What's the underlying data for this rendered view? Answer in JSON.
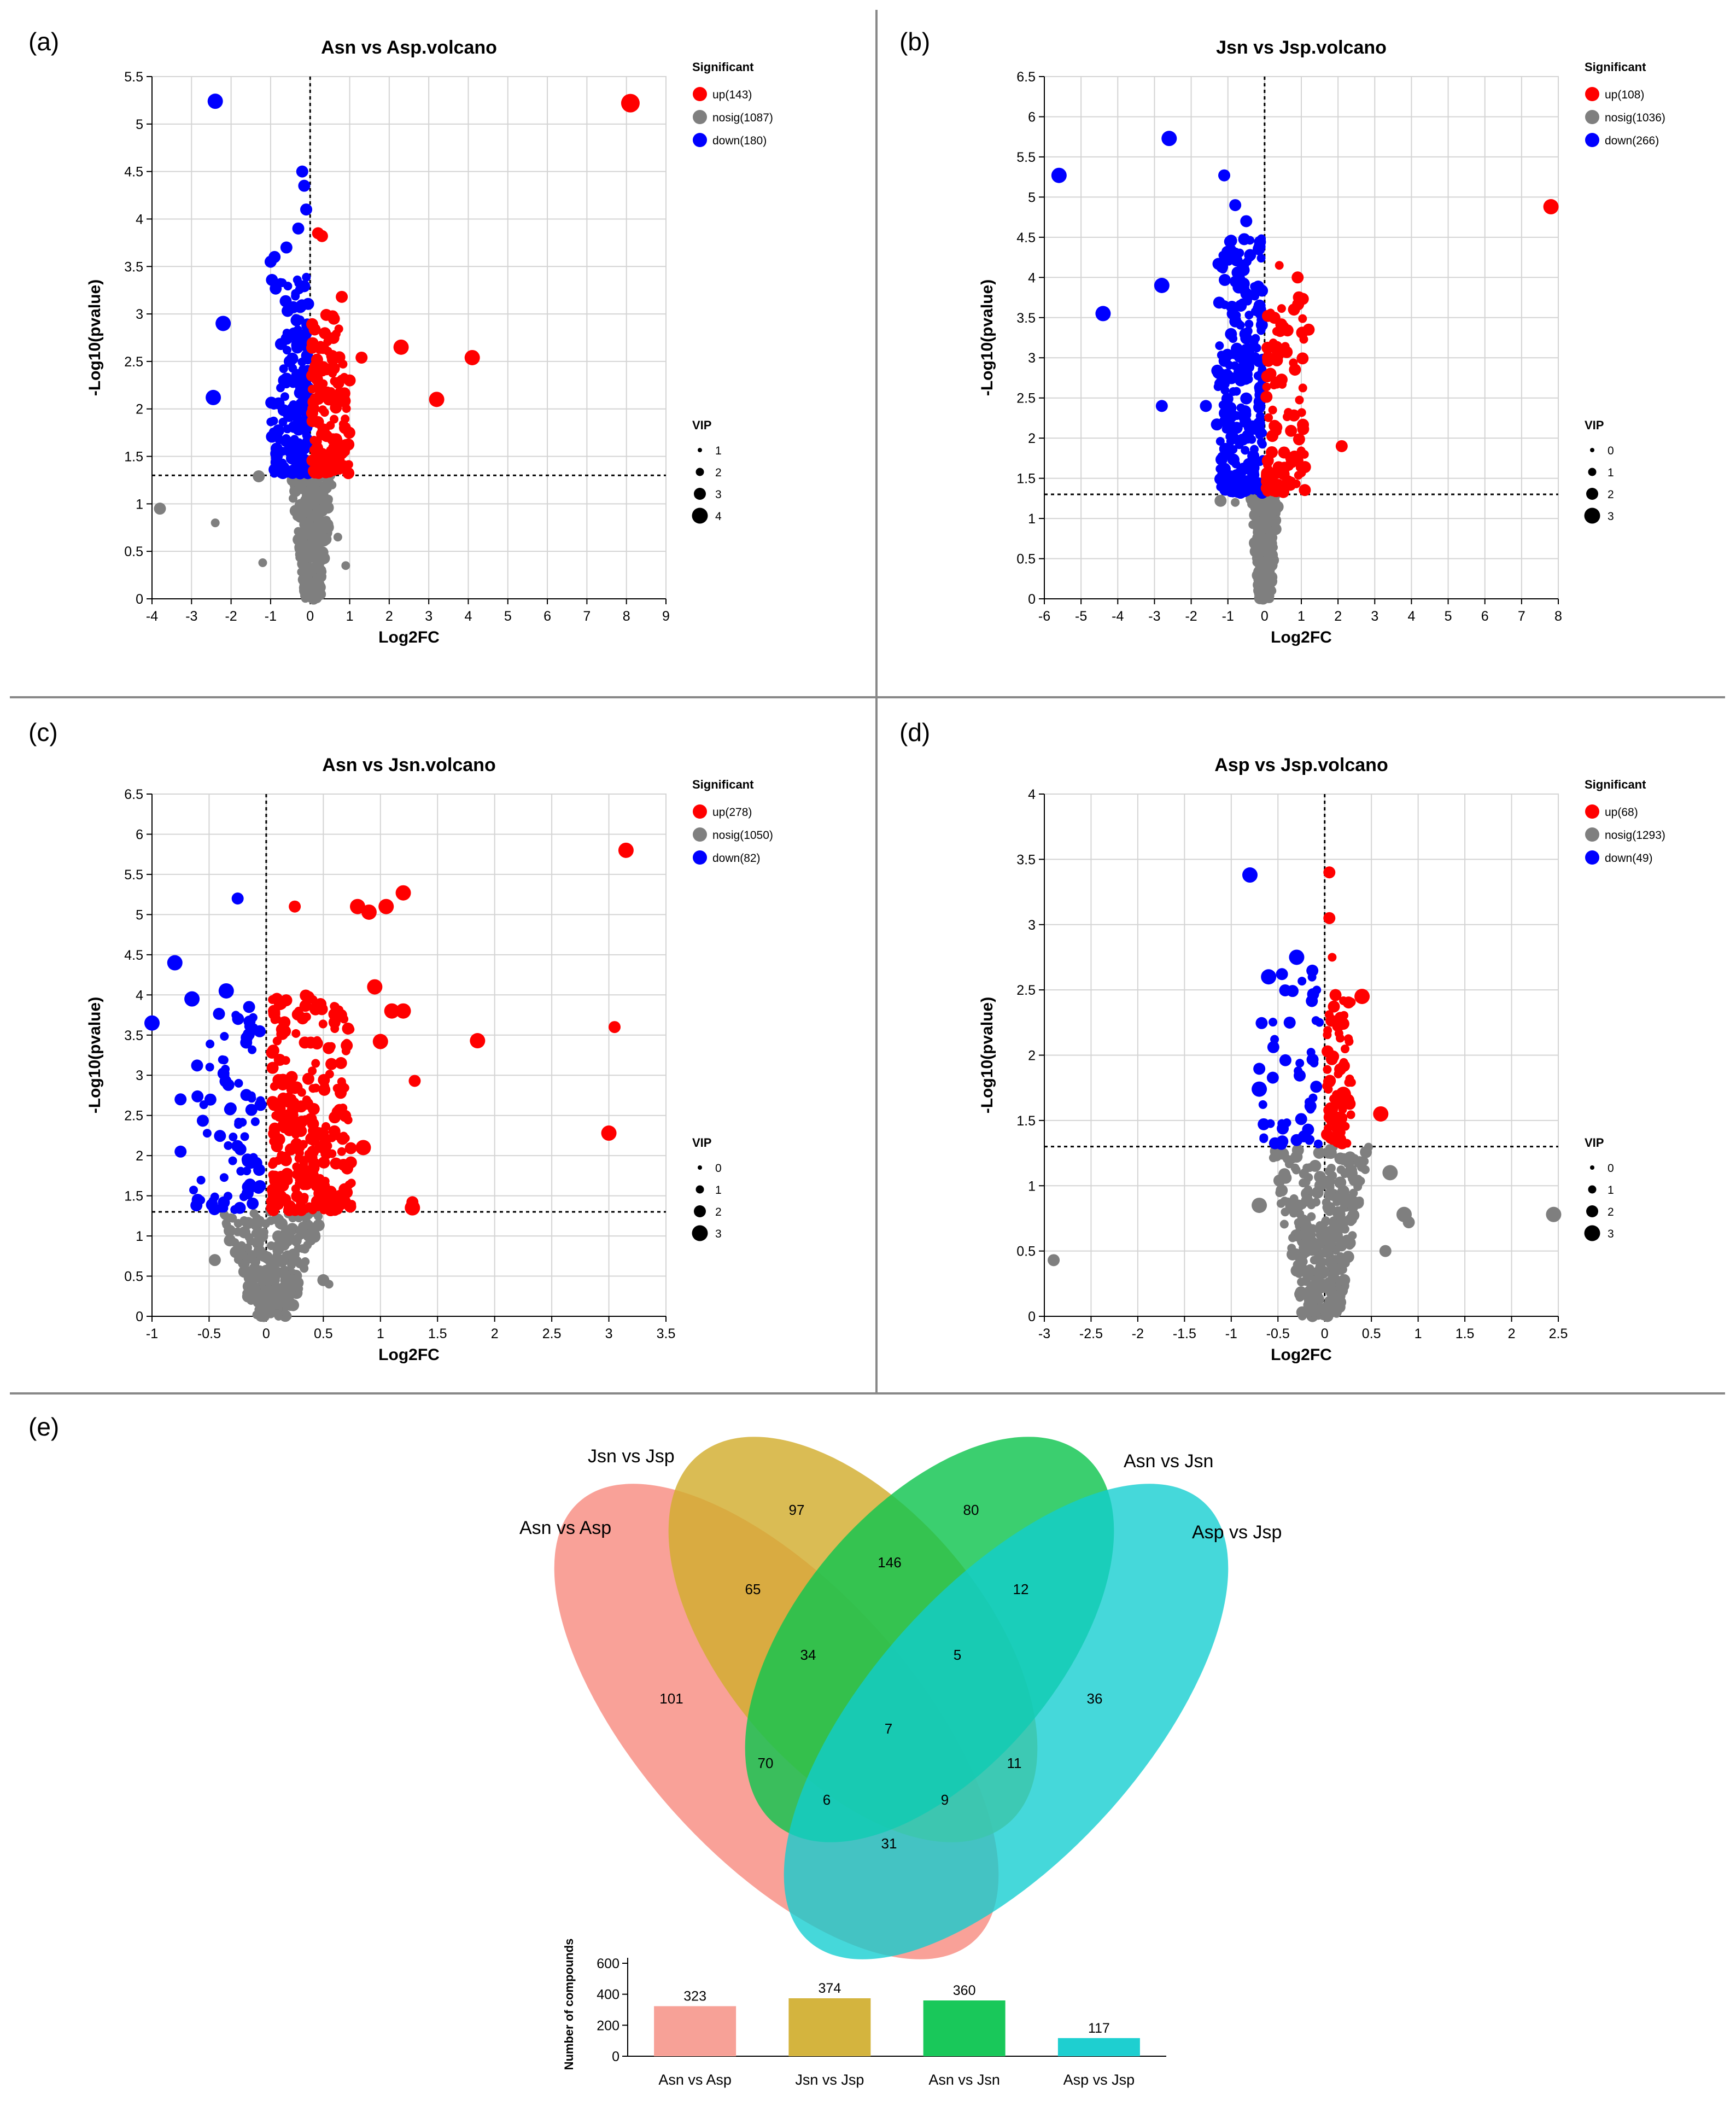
{
  "panel_labels": [
    "(a)",
    "(b)",
    "(c)",
    "(d)",
    "(e)"
  ],
  "chart_data": [
    {
      "type": "scatter",
      "panel": "(a)",
      "title": "Asn vs Asp.volcano",
      "xlabel": "Log2FC",
      "ylabel": "-Log10(pvalue)",
      "xlim": [
        -4,
        9
      ],
      "ylim": [
        0,
        5.5
      ],
      "xticks": [
        "-4",
        "-3",
        "-2",
        "-1",
        "0",
        "1",
        "2",
        "3",
        "4",
        "5",
        "6",
        "7",
        "8",
        "9"
      ],
      "yticks": [
        "0",
        "0.5",
        "1",
        "1.5",
        "2",
        "2.5",
        "3",
        "3.5",
        "4",
        "4.5",
        "5",
        "5.5"
      ],
      "threshold_y": 1.3,
      "grid": true,
      "legend_significant_title": "Significant",
      "legend_significant": [
        "up(143)",
        "nosig(1087)",
        "down(180)"
      ],
      "legend_vip_title": "VIP",
      "legend_vip": [
        "1",
        "2",
        "3",
        "4"
      ],
      "clusters": {
        "up": {
          "count": 143,
          "xmin": 0.05,
          "xmax": 1.0,
          "ymin": 1.32,
          "ymax": 3.0
        },
        "down": {
          "count": 180,
          "xmin": -1.0,
          "xmax": -0.05,
          "ymin": 1.32,
          "ymax": 3.4
        },
        "nosig": {
          "count": 260,
          "xmin": -0.5,
          "xmax": 0.6,
          "ymin": 0.0,
          "ymax": 1.3
        }
      },
      "points": {
        "up": [
          [
            8.1,
            5.22,
            4
          ],
          [
            4.1,
            2.54,
            3
          ],
          [
            3.2,
            2.1,
            3
          ],
          [
            2.3,
            2.65,
            3
          ],
          [
            1.3,
            2.54,
            2
          ],
          [
            0.8,
            3.18,
            2
          ],
          [
            0.3,
            3.82,
            2
          ],
          [
            0.2,
            3.85,
            2
          ],
          [
            1.0,
            2.3,
            2
          ],
          [
            0.6,
            2.95,
            2
          ]
        ],
        "down": [
          [
            -2.4,
            5.24,
            3
          ],
          [
            -2.2,
            2.9,
            3
          ],
          [
            -2.45,
            2.12,
            3
          ],
          [
            -0.2,
            4.5,
            2
          ],
          [
            -0.15,
            4.35,
            2
          ],
          [
            -0.9,
            3.6,
            2
          ],
          [
            -1.0,
            3.55,
            2
          ],
          [
            -0.6,
            3.7,
            2
          ],
          [
            -0.3,
            3.9,
            2
          ],
          [
            -0.1,
            4.1,
            2
          ]
        ],
        "nosig": [
          [
            -3.8,
            0.95,
            2
          ],
          [
            -2.4,
            0.8,
            1
          ],
          [
            -1.3,
            1.29,
            2
          ],
          [
            -1.2,
            0.38,
            1
          ],
          [
            0.9,
            0.35,
            1
          ],
          [
            0.7,
            0.65,
            1
          ]
        ]
      }
    },
    {
      "type": "scatter",
      "panel": "(b)",
      "title": "Jsn vs Jsp.volcano",
      "xlabel": "Log2FC",
      "ylabel": "-Log10(pvalue)",
      "xlim": [
        -6,
        8
      ],
      "ylim": [
        0,
        6.5
      ],
      "xticks": [
        "-6",
        "-5",
        "-4",
        "-3",
        "-2",
        "-1",
        "0",
        "1",
        "2",
        "3",
        "4",
        "5",
        "6",
        "7",
        "8"
      ],
      "yticks": [
        "0",
        "0.5",
        "1",
        "1.5",
        "2",
        "2.5",
        "3",
        "3.5",
        "4",
        "4.5",
        "5",
        "5.5",
        "6",
        "6.5"
      ],
      "threshold_y": 1.3,
      "grid": true,
      "legend_significant_title": "Significant",
      "legend_significant": [
        "up(108)",
        "nosig(1036)",
        "down(266)"
      ],
      "legend_vip_title": "VIP",
      "legend_vip": [
        "0",
        "1",
        "2",
        "3"
      ],
      "clusters": {
        "up": {
          "count": 108,
          "xmin": 0.05,
          "xmax": 1.1,
          "ymin": 1.32,
          "ymax": 3.8
        },
        "down": {
          "count": 266,
          "xmin": -1.3,
          "xmax": -0.05,
          "ymin": 1.32,
          "ymax": 4.5
        },
        "nosig": {
          "count": 240,
          "xmin": -0.4,
          "xmax": 0.4,
          "ymin": 0.0,
          "ymax": 1.3
        }
      },
      "points": {
        "up": [
          [
            7.8,
            4.88,
            3
          ],
          [
            2.1,
            1.9,
            2
          ],
          [
            1.1,
            1.64,
            2
          ],
          [
            1.2,
            3.35,
            2
          ],
          [
            0.9,
            4.0,
            2
          ],
          [
            0.4,
            4.15,
            1
          ],
          [
            0.8,
            3.6,
            2
          ]
        ],
        "down": [
          [
            -5.6,
            5.27,
            3
          ],
          [
            -2.6,
            5.73,
            3
          ],
          [
            -4.4,
            3.55,
            3
          ],
          [
            -2.8,
            3.9,
            3
          ],
          [
            -2.8,
            2.4,
            2
          ],
          [
            -1.1,
            5.27,
            2
          ],
          [
            -0.8,
            4.9,
            2
          ],
          [
            -1.6,
            2.4,
            2
          ],
          [
            -1.3,
            2.17,
            2
          ],
          [
            -0.5,
            4.7,
            2
          ]
        ],
        "nosig": [
          [
            -1.2,
            1.22,
            2
          ],
          [
            -0.8,
            1.2,
            1
          ],
          [
            0.2,
            0.1,
            1
          ],
          [
            -0.1,
            0.1,
            1
          ]
        ]
      }
    },
    {
      "type": "scatter",
      "panel": "(c)",
      "title": "Asn vs Jsn.volcano",
      "xlabel": "Log2FC",
      "ylabel": "-Log10(pvalue)",
      "xlim": [
        -1,
        3.5
      ],
      "ylim": [
        0,
        6.5
      ],
      "xticks": [
        "-1",
        "-0.5",
        "0",
        "0.5",
        "1",
        "1.5",
        "2",
        "2.5",
        "3",
        "3.5"
      ],
      "yticks": [
        "0",
        "0.5",
        "1",
        "1.5",
        "2",
        "2.5",
        "3",
        "3.5",
        "4",
        "4.5",
        "5",
        "5.5",
        "6",
        "6.5"
      ],
      "threshold_y": 1.3,
      "grid": true,
      "legend_significant_title": "Significant",
      "legend_significant": [
        "up(278)",
        "nosig(1050)",
        "down(82)"
      ],
      "legend_vip_title": "VIP",
      "legend_vip": [
        "0",
        "1",
        "2",
        "3"
      ],
      "clusters": {
        "up": {
          "count": 278,
          "xmin": 0.05,
          "xmax": 0.75,
          "ymin": 1.32,
          "ymax": 4.0
        },
        "down": {
          "count": 82,
          "xmin": -0.65,
          "xmax": -0.05,
          "ymin": 1.32,
          "ymax": 3.8
        },
        "nosig": {
          "count": 280,
          "xmin": -0.4,
          "xmax": 0.5,
          "ymin": 0.0,
          "ymax": 1.3
        }
      },
      "points": {
        "up": [
          [
            3.15,
            5.8,
            3
          ],
          [
            3.05,
            3.6,
            2
          ],
          [
            3.0,
            2.28,
            3
          ],
          [
            1.85,
            3.43,
            3
          ],
          [
            1.3,
            2.93,
            2
          ],
          [
            1.28,
            1.35,
            3
          ],
          [
            1.28,
            1.42,
            2
          ],
          [
            1.2,
            5.27,
            3
          ],
          [
            1.05,
            5.1,
            3
          ],
          [
            0.9,
            5.03,
            3
          ],
          [
            0.8,
            5.1,
            3
          ],
          [
            0.25,
            5.1,
            2
          ],
          [
            1.2,
            3.8,
            3
          ],
          [
            1.1,
            3.8,
            3
          ],
          [
            1.0,
            3.42,
            3
          ],
          [
            0.95,
            4.1,
            3
          ],
          [
            0.85,
            2.1,
            3
          ]
        ],
        "down": [
          [
            -1.0,
            3.65,
            3
          ],
          [
            -0.8,
            4.4,
            3
          ],
          [
            -0.65,
            3.95,
            3
          ],
          [
            -0.25,
            5.2,
            2
          ],
          [
            -0.35,
            4.05,
            3
          ],
          [
            -0.75,
            2.7,
            2
          ],
          [
            -0.6,
            1.45,
            2
          ],
          [
            -0.75,
            2.05,
            2
          ],
          [
            -0.15,
            3.85,
            2
          ]
        ],
        "nosig": [
          [
            0.5,
            0.45,
            2
          ],
          [
            0.55,
            0.4,
            1
          ],
          [
            -0.45,
            0.7,
            2
          ]
        ]
      }
    },
    {
      "type": "scatter",
      "panel": "(d)",
      "title": "Asp vs Jsp.volcano",
      "xlabel": "Log2FC",
      "ylabel": "-Log10(pvalue)",
      "xlim": [
        -3,
        2.5
      ],
      "ylim": [
        0,
        4
      ],
      "xticks": [
        "-3",
        "-2.5",
        "-2",
        "-1.5",
        "-1",
        "-0.5",
        "0",
        "0.5",
        "1",
        "1.5",
        "2",
        "2.5"
      ],
      "yticks": [
        "0",
        "0.5",
        "1",
        "1.5",
        "2",
        "2.5",
        "3",
        "3.5",
        "4"
      ],
      "threshold_y": 1.3,
      "grid": true,
      "legend_significant_title": "Significant",
      "legend_significant": [
        "up(68)",
        "nosig(1293)",
        "down(49)"
      ],
      "legend_vip_title": "VIP",
      "legend_vip": [
        "0",
        "1",
        "2",
        "3"
      ],
      "clusters": {
        "up": {
          "count": 68,
          "xmin": 0.02,
          "xmax": 0.3,
          "ymin": 1.32,
          "ymax": 2.5
        },
        "down": {
          "count": 49,
          "xmin": -0.7,
          "xmax": -0.05,
          "ymin": 1.32,
          "ymax": 2.7
        },
        "nosig": {
          "count": 330,
          "xmin": -0.6,
          "xmax": 0.5,
          "ymin": 0.0,
          "ymax": 1.3
        }
      },
      "points": {
        "up": [
          [
            0.05,
            3.4,
            2
          ],
          [
            0.05,
            3.05,
            2
          ],
          [
            0.08,
            2.75,
            1
          ],
          [
            0.4,
            2.45,
            3
          ],
          [
            0.6,
            1.55,
            3
          ],
          [
            0.2,
            1.7,
            3
          ],
          [
            0.15,
            1.35,
            3
          ]
        ],
        "down": [
          [
            -0.8,
            3.38,
            3
          ],
          [
            -0.3,
            2.75,
            3
          ],
          [
            -0.6,
            2.6,
            3
          ],
          [
            -0.7,
            1.74,
            3
          ],
          [
            -0.3,
            1.35,
            2
          ]
        ],
        "nosig": [
          [
            -2.9,
            0.43,
            2
          ],
          [
            2.45,
            0.78,
            3
          ],
          [
            0.85,
            0.78,
            3
          ],
          [
            0.9,
            0.72,
            2
          ],
          [
            0.7,
            1.1,
            3
          ],
          [
            0.65,
            0.5,
            2
          ],
          [
            -0.7,
            0.85,
            3
          ],
          [
            -0.3,
            0.35,
            2
          ]
        ]
      }
    },
    {
      "type": "bar",
      "panel": "(e)",
      "title": "",
      "xlabel": "",
      "ylabel": "Number of compounds",
      "categories": [
        "Asn vs Asp",
        "Jsn vs Jsp",
        "Asn vs Jsn",
        "Asp vs Jsp"
      ],
      "values": [
        323,
        374,
        360,
        117
      ],
      "value_labels": [
        "323",
        "374",
        "360",
        "117"
      ],
      "colors": [
        "#f7a197",
        "#d4b43e",
        "#19c85a",
        "#1ecfd0"
      ],
      "ylim": [
        0,
        600
      ],
      "yticks": [
        "0",
        "200",
        "400",
        "600"
      ],
      "grid": false
    }
  ],
  "venn": {
    "sets": [
      {
        "name": "Asn vs Asp",
        "color": "#f88a7e"
      },
      {
        "name": "Jsn vs Jsp",
        "color": "#d2ad2e"
      },
      {
        "name": "Asn vs Jsn",
        "color": "#10c44f"
      },
      {
        "name": "Asp vs Jsp",
        "color": "#11cdd0"
      }
    ],
    "regions": [
      {
        "sets": "Asn vs Asp only",
        "value": "101"
      },
      {
        "sets": "Jsn vs Jsp only",
        "value": "97"
      },
      {
        "sets": "Asn vs Jsn only",
        "value": "80"
      },
      {
        "sets": "Asp vs Jsp only",
        "value": "36"
      },
      {
        "sets": "Asn vs Asp & Jsn vs Jsp",
        "value": "65"
      },
      {
        "sets": "Jsn vs Jsp & Asn vs Jsn",
        "value": "146"
      },
      {
        "sets": "Asn vs Jsn & Asp vs Jsp",
        "value": "12"
      },
      {
        "sets": "Asn vs Asp & Jsn vs Jsp & Asn vs Jsn",
        "value": "34"
      },
      {
        "sets": "Jsn vs Jsp & Asn vs Jsn & Asp vs Jsp",
        "value": "5"
      },
      {
        "sets": "Asn vs Asp & Asn vs Jsn",
        "value": "70"
      },
      {
        "sets": "all four",
        "value": "7"
      },
      {
        "sets": "Jsn vs Jsp & Asp vs Jsp",
        "value": "11"
      },
      {
        "sets": "Asn vs Asp & Asn vs Jsn & Asp vs Jsp",
        "value": "6"
      },
      {
        "sets": "Asn vs Asp & Jsn vs Jsp & Asp vs Jsp",
        "value": "9"
      },
      {
        "sets": "Asn vs Asp & Asp vs Jsp",
        "value": "31"
      }
    ]
  },
  "colors": {
    "up": "#ff0000",
    "down": "#0000ff",
    "nosig": "#7f7f7f",
    "axis": "#000000",
    "grid": "#d4d4d4",
    "divider": "#888888"
  }
}
